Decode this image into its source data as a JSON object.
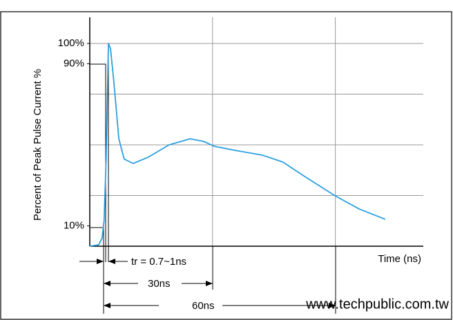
{
  "chart_data": {
    "type": "line",
    "ylabel": "Percent of Peak Pulse Current %",
    "xlabel": "Time (ns)",
    "x": [
      0,
      2.2,
      3.0,
      3.5,
      4.0,
      4.55,
      5.06,
      5.9,
      7.1,
      8.4,
      10.6,
      14.3,
      19.4,
      24.5,
      27.8,
      30.4,
      35.4,
      42.2,
      47.2,
      52.3,
      60,
      65.8,
      72.2
    ],
    "values": [
      0,
      0.7,
      4,
      12.6,
      43,
      100,
      97.6,
      80.6,
      53,
      43,
      40.8,
      43.9,
      50,
      53,
      51.7,
      49.3,
      47.3,
      44.9,
      41.5,
      34.7,
      24.8,
      18.4,
      13.3
    ],
    "color": "#2a9fe0",
    "xlim": [
      0,
      81.5
    ],
    "ylim": [
      0,
      112
    ],
    "xgrid": [
      30,
      60
    ],
    "ygrid": [
      25,
      50,
      75,
      100
    ],
    "yticks": [
      {
        "value": 100,
        "label": "100%"
      },
      {
        "value": 90,
        "label": "90%"
      },
      {
        "value": 10,
        "label": "10%"
      }
    ],
    "annotations": [
      "tr = 0.7~1ns",
      "30ns",
      "60ns",
      "www.techpublic.com.tw"
    ],
    "grid": true
  }
}
